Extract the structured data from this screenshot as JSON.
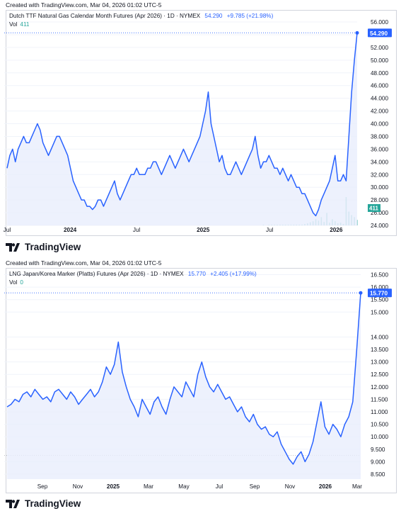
{
  "created_text": "Created with TradingView.com, Mar 04, 2026 01:02 UTC-5",
  "brand_text": "TradingView",
  "colors": {
    "line": "#2962ff",
    "fill": "#e8eefc",
    "volume": "#26a69a",
    "grid": "#f0f3fa",
    "last_badge": "#2962ff"
  },
  "chart_data": [
    {
      "type": "line",
      "legend_title": "Dutch TTF Natural Gas Calendar Month Futures (Apr 2026) · 1D · NYMEX",
      "last_value": "54.290",
      "change": "+9.785 (+21.98%)",
      "vol_label": "Vol",
      "vol_value": "411",
      "ylim": [
        24,
        56
      ],
      "y_ticks": [
        "56.000",
        "54.000",
        "52.000",
        "50.000",
        "48.000",
        "46.000",
        "44.000",
        "42.000",
        "40.000",
        "38.000",
        "36.000",
        "34.000",
        "32.000",
        "30.000",
        "28.000",
        "26.000",
        "24.000"
      ],
      "x_ticks": [
        "Jul",
        "2024",
        "Jul",
        "2025",
        "Jul",
        "2026"
      ],
      "x_tick_positions": [
        0.0,
        0.18,
        0.37,
        0.56,
        0.75,
        0.94
      ],
      "series": [
        {
          "values": [
            33,
            35,
            36,
            34,
            36,
            37,
            38,
            37,
            37,
            38,
            39,
            40,
            39,
            37,
            36,
            35,
            36,
            37,
            38,
            38,
            37,
            36,
            35,
            33,
            31,
            30,
            29,
            28,
            28,
            27,
            27,
            26.5,
            27,
            28,
            28,
            27,
            28,
            29,
            30,
            31,
            29,
            28,
            29,
            30,
            31,
            32,
            32,
            33,
            32,
            32,
            32,
            33,
            33,
            34,
            34,
            33,
            32,
            33,
            34,
            35,
            34,
            33,
            34,
            35,
            36,
            35,
            34,
            35,
            36,
            37,
            38,
            40,
            42,
            45,
            40,
            38,
            36,
            34,
            35,
            33,
            32,
            32,
            33,
            34,
            33,
            32,
            33,
            34,
            35,
            36,
            38,
            35,
            33,
            34,
            34,
            35,
            34,
            33,
            33,
            32,
            33,
            32,
            31,
            32,
            31,
            30,
            30,
            29,
            29,
            28,
            27,
            26,
            25.5,
            26.5,
            28,
            29,
            30,
            31,
            33,
            35,
            31,
            31,
            32,
            31,
            38,
            45,
            50,
            54.29
          ]
        }
      ],
      "volume": {
        "values": [
          0,
          0,
          0,
          0,
          0,
          0,
          0,
          0,
          0,
          0,
          0,
          0,
          0,
          0,
          0,
          0,
          0,
          0,
          0,
          0,
          0,
          0,
          0,
          0,
          0,
          0,
          0,
          0,
          0,
          0,
          0,
          0,
          0,
          0,
          0,
          0,
          0,
          0,
          0,
          0,
          0,
          0,
          0,
          0,
          0,
          0,
          0,
          0,
          0,
          0,
          0,
          0,
          0,
          0,
          0,
          0,
          0,
          0,
          0,
          0,
          0,
          0,
          0,
          0,
          0,
          0,
          0,
          0,
          0,
          0,
          0,
          0,
          0,
          0,
          0,
          0,
          0,
          0,
          0,
          0,
          0,
          0,
          0,
          0,
          0,
          0,
          0,
          0,
          0,
          0,
          0,
          0,
          0,
          1,
          0,
          1,
          1,
          2,
          1,
          2,
          1,
          2,
          3,
          2,
          3,
          5,
          8,
          12,
          20,
          30,
          45,
          60,
          90,
          70,
          120,
          50,
          180,
          40,
          90,
          60,
          30,
          40,
          20,
          411,
          200,
          150,
          120,
          80
        ]
      },
      "vol_badge": "411"
    },
    {
      "type": "line",
      "legend_title": "LNG Japan/Korea Marker (Platts) Futures (Apr 2026) · 1D · NYMEX",
      "last_value": "15.770",
      "change": "+2.405 (+17.99%)",
      "vol_label": "Vol",
      "vol_value": "0",
      "ylim": [
        8.3,
        16.6
      ],
      "y_ticks": [
        "16.500",
        "16.000",
        "15.500",
        "15.000",
        "14.000",
        "13.500",
        "13.000",
        "12.500",
        "12.000",
        "11.500",
        "11.000",
        "10.500",
        "10.000",
        "9.500",
        "9.000",
        "8.500"
      ],
      "y_tick_values": [
        16.5,
        16.0,
        15.5,
        15.0,
        14.0,
        13.5,
        13.0,
        12.5,
        12.0,
        11.5,
        11.0,
        10.5,
        10.0,
        9.5,
        9.0,
        8.5
      ],
      "x_ticks": [
        "Sep",
        "Nov",
        "2025",
        "Mar",
        "May",
        "Jul",
        "Sep",
        "Nov",
        "2026",
        "Mar"
      ],
      "x_tick_positions": [
        0.1,
        0.2,
        0.3,
        0.4,
        0.5,
        0.6,
        0.7,
        0.8,
        0.9,
        0.99
      ],
      "series": [
        {
          "values": [
            11.2,
            11.3,
            11.5,
            11.4,
            11.7,
            11.8,
            11.6,
            11.9,
            11.7,
            11.5,
            11.6,
            11.4,
            11.8,
            11.9,
            11.7,
            11.5,
            11.8,
            11.6,
            11.3,
            11.5,
            11.7,
            11.9,
            11.6,
            11.8,
            12.2,
            12.8,
            12.5,
            12.9,
            13.8,
            12.6,
            12.0,
            11.5,
            11.2,
            10.8,
            11.5,
            11.2,
            10.9,
            11.4,
            11.6,
            11.2,
            10.9,
            11.5,
            12.0,
            11.8,
            11.6,
            12.2,
            11.9,
            11.6,
            12.5,
            13.0,
            12.4,
            12.0,
            11.8,
            12.1,
            11.8,
            11.5,
            11.6,
            11.3,
            11.0,
            11.2,
            10.8,
            10.6,
            10.9,
            10.5,
            10.3,
            10.4,
            10.1,
            10.0,
            10.2,
            9.7,
            9.4,
            9.1,
            8.9,
            9.2,
            9.4,
            9.0,
            9.3,
            9.8,
            10.6,
            11.4,
            10.4,
            10.1,
            10.5,
            10.3,
            10.0,
            10.5,
            10.8,
            11.4,
            13.5,
            15.77
          ]
        }
      ],
      "ref_line": 9.25
    }
  ]
}
